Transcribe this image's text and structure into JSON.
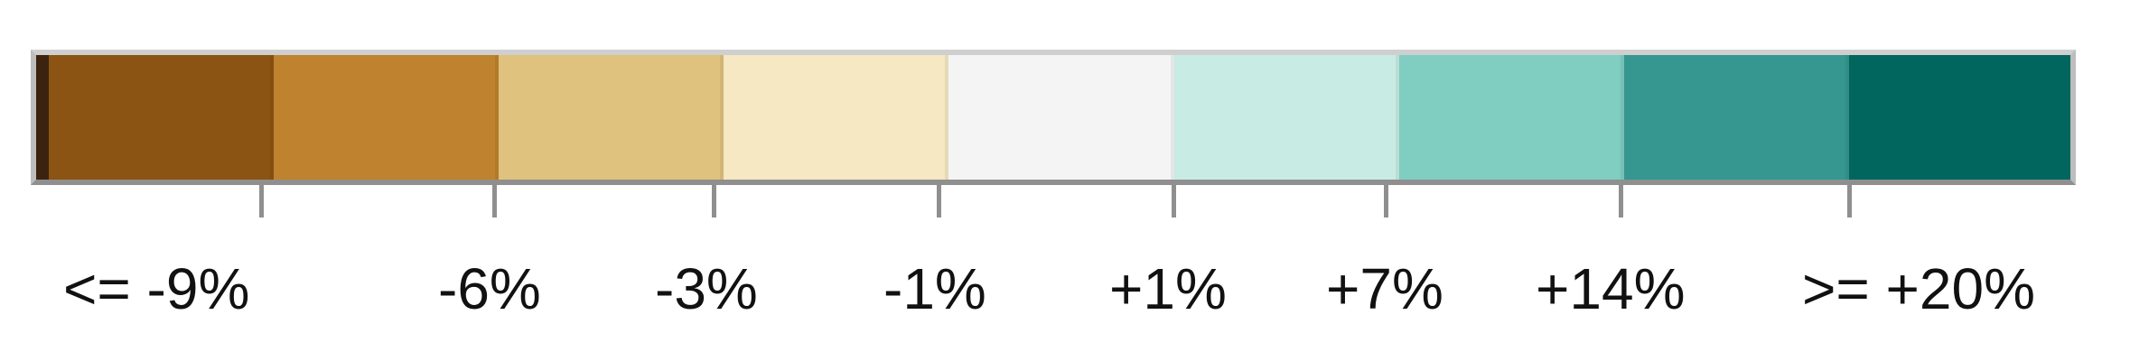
{
  "legend": {
    "bins": [
      {
        "color": "#8c5413"
      },
      {
        "color": "#bf822f"
      },
      {
        "color": "#dfc27d"
      },
      {
        "color": "#f5e8c2"
      },
      {
        "color": "#f4f4f4"
      },
      {
        "color": "#c8ebe4"
      },
      {
        "color": "#80cdc1"
      },
      {
        "color": "#35978f"
      },
      {
        "color": "#01665e"
      }
    ],
    "labels": [
      "<= -9%",
      "-6%",
      "-3%",
      "-1%",
      "+1%",
      "+7%",
      "+14%",
      ">= +20%"
    ]
  }
}
